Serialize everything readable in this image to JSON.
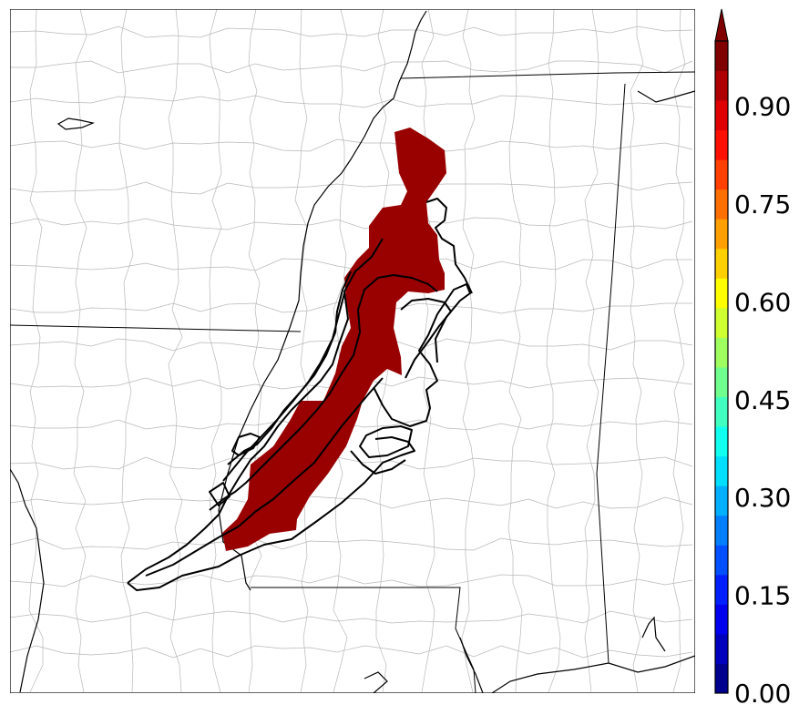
{
  "map": {
    "swath_color": "#990000",
    "border_color": "#000000",
    "county_color": "#b8b8b8",
    "background": "#ffffff"
  },
  "colorbar": {
    "tick_labels": [
      "0.00",
      "0.15",
      "0.30",
      "0.45",
      "0.60",
      "0.75",
      "0.90"
    ],
    "tick_values": [
      0.0,
      0.15,
      0.3,
      0.45,
      0.6,
      0.75,
      0.9
    ],
    "min": 0.0,
    "max": 1.0,
    "extend": "max",
    "colors": [
      "#00008f",
      "#0000bf",
      "#0000ef",
      "#0020ff",
      "#0050ff",
      "#0080ff",
      "#00b0ff",
      "#00dfff",
      "#10ffef",
      "#40ffbf",
      "#70ff8f",
      "#9fff60",
      "#cfff30",
      "#ffff00",
      "#ffd000",
      "#ffa000",
      "#ff7000",
      "#ff4000",
      "#ff1000",
      "#df0000",
      "#af0000",
      "#800000"
    ]
  }
}
